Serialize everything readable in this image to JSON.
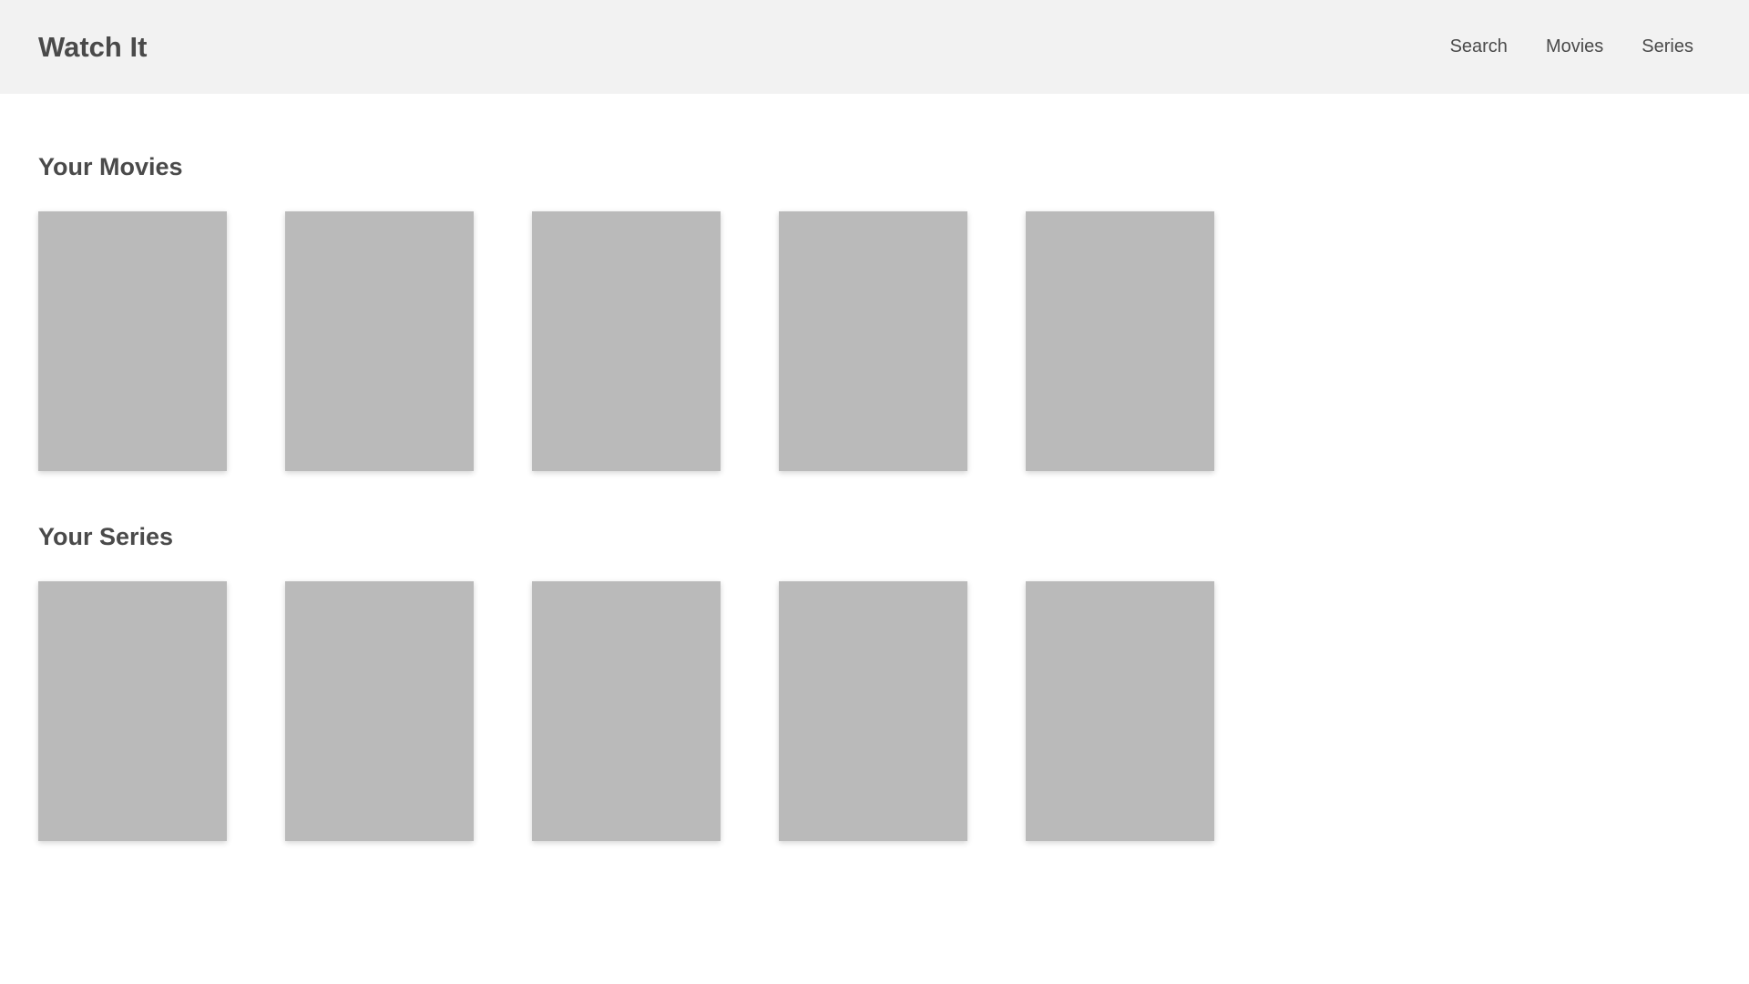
{
  "header": {
    "brand": "Watch It",
    "nav": [
      {
        "label": "Search"
      },
      {
        "label": "Movies"
      },
      {
        "label": "Series"
      }
    ]
  },
  "sections": [
    {
      "title": "Your Movies",
      "item_count": 5
    },
    {
      "title": "Your Series",
      "item_count": 5
    }
  ],
  "colors": {
    "header_bg": "#f2f2f2",
    "text": "#4a4a4a",
    "poster_placeholder": "#bababa",
    "page_bg": "#ffffff"
  }
}
